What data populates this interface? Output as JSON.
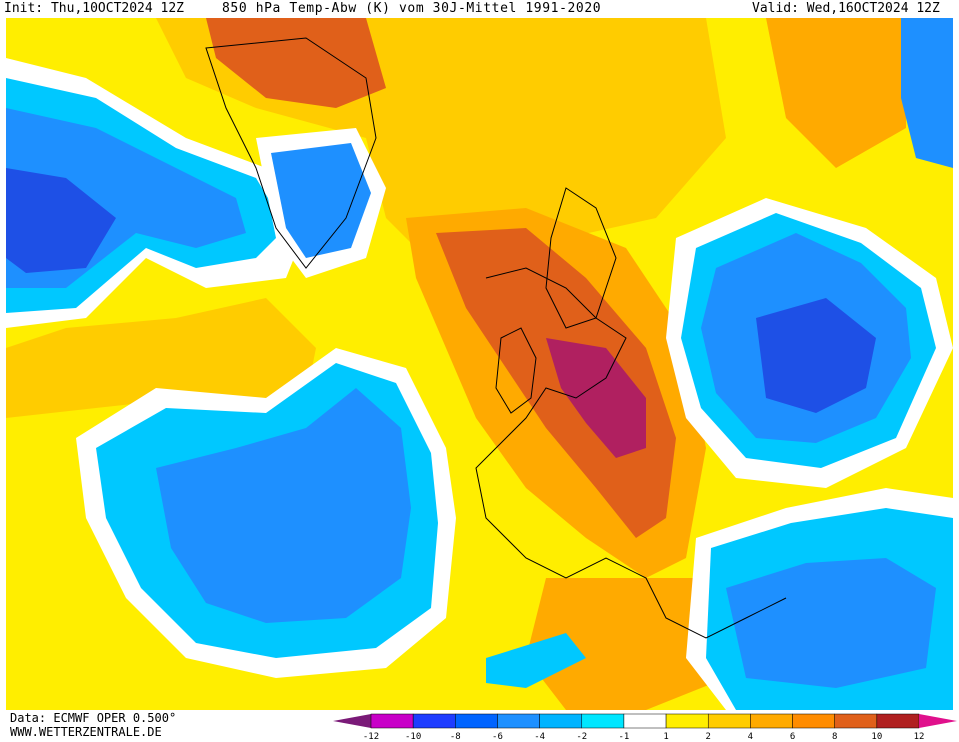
{
  "header": {
    "init": "Init: Thu,10OCT2024 12Z",
    "title": "850 hPa Temp-Abw (K) vom 30J-Mittel 1991-2020",
    "valid": "Valid: Wed,16OCT2024 12Z"
  },
  "footer": {
    "data_source": "Data: ECMWF OPER 0.500°",
    "website": "WWW.WETTERZENTRALE.DE"
  },
  "legend": {
    "ticks": [
      "-12",
      "-10",
      "-8",
      "-6",
      "-4",
      "-2",
      "-1",
      "1",
      "2",
      "4",
      "6",
      "8",
      "10",
      "12"
    ],
    "colors": [
      "#7a1a78",
      "#c800c8",
      "#1e3cff",
      "#0064ff",
      "#1e90ff",
      "#00b4ff",
      "#00e6ff",
      "#ffffff",
      "#ffee00",
      "#ffcc00",
      "#ffaa00",
      "#ff8c00",
      "#e0601a",
      "#b02020",
      "#e0108c"
    ]
  },
  "colors": {
    "very_cold": "#1e50e6",
    "cold": "#1e90ff",
    "cool": "#00c8ff",
    "neutral": "#ffffff",
    "mild": "#ffee00",
    "warm": "#ffcc00",
    "warmer": "#ffaa00",
    "hot": "#e0601a",
    "very_hot": "#b02060"
  }
}
